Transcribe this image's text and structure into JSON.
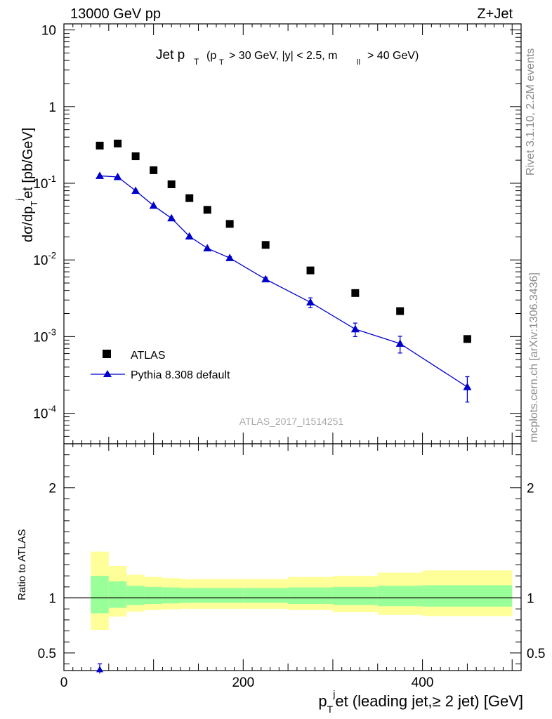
{
  "header": {
    "left": "13000 GeV pp",
    "right": "Z+Jet"
  },
  "side_texts": {
    "rivet": "Rivet 3.1.10,  2.2M events",
    "mcplots": "mcplots.cern.ch [arXiv:1306.3436]"
  },
  "watermark": "ATLAS_2017_I1514251",
  "plot_title": {
    "main": "Jet p",
    "main_sub": "T",
    "cond_1": "(p",
    "cond_1_sub": "T",
    "cond_2": "> 30 GeV, |y| < 2.5, m",
    "cond_2_sub": "ll",
    "cond_3": "> 40 GeV)"
  },
  "axes": {
    "y_main": "dσ/dp_T^jet [pb/GeV]",
    "y_ratio": "Ratio to ATLAS",
    "x": "p_T^jet (leading jet,≥ 2 jet) [GeV]"
  },
  "legend": {
    "data_label": "ATLAS",
    "mc_label": "Pythia 8.308 default"
  },
  "colors": {
    "data": "#000000",
    "mc": "#0000cc",
    "band_inner": "#99ff99",
    "band_outer": "#ffff99"
  },
  "chart_data": {
    "type": "scatter",
    "x_range": [
      0,
      510
    ],
    "y_range": [
      4e-05,
      12
    ],
    "y_scale": "log",
    "ratio_range": [
      0.34,
      2.4
    ],
    "x_ticks": [
      "0",
      "200",
      "400"
    ],
    "y_ticks": [
      {
        "value": 10,
        "label": "10"
      },
      {
        "value": 1,
        "label": "1"
      },
      {
        "value": 0.1,
        "label": "10",
        "exp": "-1"
      },
      {
        "value": 0.01,
        "label": "10",
        "exp": "-2"
      },
      {
        "value": 0.001,
        "label": "10",
        "exp": "-3"
      },
      {
        "value": 0.0001,
        "label": "10",
        "exp": "-4"
      }
    ],
    "ratio_ticks": [
      "0.5",
      "1",
      "2"
    ],
    "series": [
      {
        "name": "ATLAS",
        "x": [
          40,
          60,
          80,
          100,
          120,
          140,
          160,
          185,
          225,
          275,
          325,
          375,
          450
        ],
        "y": [
          0.31,
          0.33,
          0.225,
          0.148,
          0.097,
          0.064,
          0.045,
          0.0295,
          0.0157,
          0.0073,
          0.0037,
          0.00215,
          0.00093
        ]
      },
      {
        "name": "Pythia 8.308 default",
        "x": [
          40,
          60,
          80,
          100,
          120,
          140,
          160,
          185,
          225,
          275,
          325,
          375,
          450
        ],
        "y": [
          0.125,
          0.121,
          0.08,
          0.051,
          0.035,
          0.0203,
          0.0142,
          0.0106,
          0.0056,
          0.0028,
          0.00125,
          0.00081,
          0.00022
        ],
        "yerr": [
          0,
          0,
          0,
          0,
          0,
          0,
          0,
          0.0004,
          0.0003,
          0.0004,
          0.00025,
          0.0002,
          8e-05
        ]
      }
    ],
    "ratio_bands": {
      "edges": [
        30,
        50,
        70,
        90,
        110,
        130,
        150,
        170,
        200,
        250,
        300,
        350,
        400,
        500
      ],
      "inner_lo": [
        0.86,
        0.91,
        0.935,
        0.945,
        0.95,
        0.955,
        0.955,
        0.955,
        0.955,
        0.945,
        0.935,
        0.925,
        0.92
      ],
      "inner_hi": [
        1.2,
        1.15,
        1.11,
        1.1,
        1.095,
        1.09,
        1.09,
        1.09,
        1.09,
        1.095,
        1.1,
        1.11,
        1.115
      ],
      "outer_lo": [
        0.71,
        0.83,
        0.875,
        0.89,
        0.895,
        0.9,
        0.9,
        0.9,
        0.9,
        0.89,
        0.87,
        0.845,
        0.835
      ],
      "outer_hi": [
        1.42,
        1.29,
        1.21,
        1.19,
        1.18,
        1.17,
        1.17,
        1.17,
        1.17,
        1.19,
        1.2,
        1.23,
        1.25
      ]
    },
    "ratio_mc_point": {
      "x": 40,
      "y": 0.35,
      "note": "below axis"
    }
  }
}
